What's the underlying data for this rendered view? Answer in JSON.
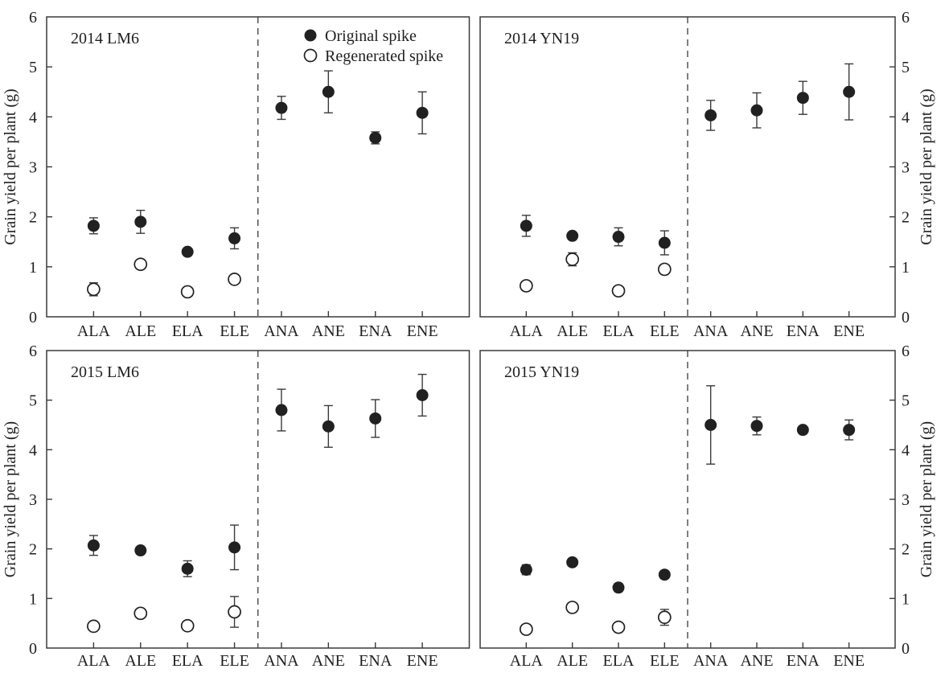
{
  "figure": {
    "background": "#ffffff",
    "colors": {
      "marker": "#212121",
      "open_marker_fill": "#ffffff",
      "line": "#3a3a3a",
      "text": "#1f1f1f"
    },
    "legend": {
      "items": [
        {
          "icon": "filled-circle-icon",
          "label": "Original spike"
        },
        {
          "icon": "open-circle-icon",
          "label": "Regenerated spike"
        }
      ]
    }
  },
  "chart_data": {
    "type": "scatter",
    "title": "",
    "xlabel": "",
    "ylabel": "Grain yield per plant (g)",
    "ylim": [
      0,
      6
    ],
    "yticks": [
      0,
      1,
      2,
      3,
      4,
      5,
      6
    ],
    "grid": false,
    "legend_position": "inside top of first panel",
    "group_divider": "dashed vertical line between ELE and ANA in every panel",
    "categories": [
      "ALA",
      "ALE",
      "ELA",
      "ELE",
      "ANA",
      "ANE",
      "ENA",
      "ENE"
    ],
    "panels": [
      {
        "label": "2014 LM6",
        "series": [
          {
            "name": "Original spike",
            "values": [
              1.82,
              1.9,
              1.3,
              1.57,
              4.18,
              4.5,
              3.58,
              4.08
            ],
            "errors": [
              0.16,
              0.23,
              0,
              0.21,
              0.23,
              0.42,
              0.12,
              0.42
            ]
          },
          {
            "name": "Regenerated spike",
            "values": [
              0.55,
              1.05,
              0.5,
              0.75,
              null,
              null,
              null,
              null
            ],
            "errors": [
              0.13,
              0,
              0,
              0,
              null,
              null,
              null,
              null
            ]
          }
        ]
      },
      {
        "label": "2014 YN19",
        "series": [
          {
            "name": "Original spike",
            "values": [
              1.82,
              1.62,
              1.6,
              1.48,
              4.03,
              4.13,
              4.38,
              4.5
            ],
            "errors": [
              0.21,
              0,
              0.18,
              0.24,
              0.3,
              0.35,
              0.33,
              0.56
            ]
          },
          {
            "name": "Regenerated spike",
            "values": [
              0.62,
              1.15,
              0.52,
              0.95,
              null,
              null,
              null,
              null
            ],
            "errors": [
              0,
              0.13,
              0,
              0,
              null,
              null,
              null,
              null
            ]
          }
        ]
      },
      {
        "label": "2015 LM6",
        "series": [
          {
            "name": "Original spike",
            "values": [
              2.07,
              1.97,
              1.6,
              2.03,
              4.8,
              4.47,
              4.63,
              5.1
            ],
            "errors": [
              0.2,
              0,
              0.16,
              0.45,
              0.42,
              0.42,
              0.38,
              0.42
            ]
          },
          {
            "name": "Regenerated spike",
            "values": [
              0.44,
              0.7,
              0.45,
              0.73,
              null,
              null,
              null,
              null
            ],
            "errors": [
              0,
              0,
              0,
              0.31,
              null,
              null,
              null,
              null
            ]
          }
        ]
      },
      {
        "label": "2015 YN19",
        "series": [
          {
            "name": "Original spike",
            "values": [
              1.58,
              1.73,
              1.22,
              1.48,
              4.5,
              4.48,
              4.4,
              4.4
            ],
            "errors": [
              0.1,
              0,
              0.08,
              0,
              0.79,
              0.18,
              0,
              0.2
            ]
          },
          {
            "name": "Regenerated spike",
            "values": [
              0.38,
              0.82,
              0.42,
              0.62,
              null,
              null,
              null,
              null
            ],
            "errors": [
              0,
              0,
              0,
              0.16,
              null,
              null,
              null,
              null
            ]
          }
        ]
      }
    ]
  }
}
